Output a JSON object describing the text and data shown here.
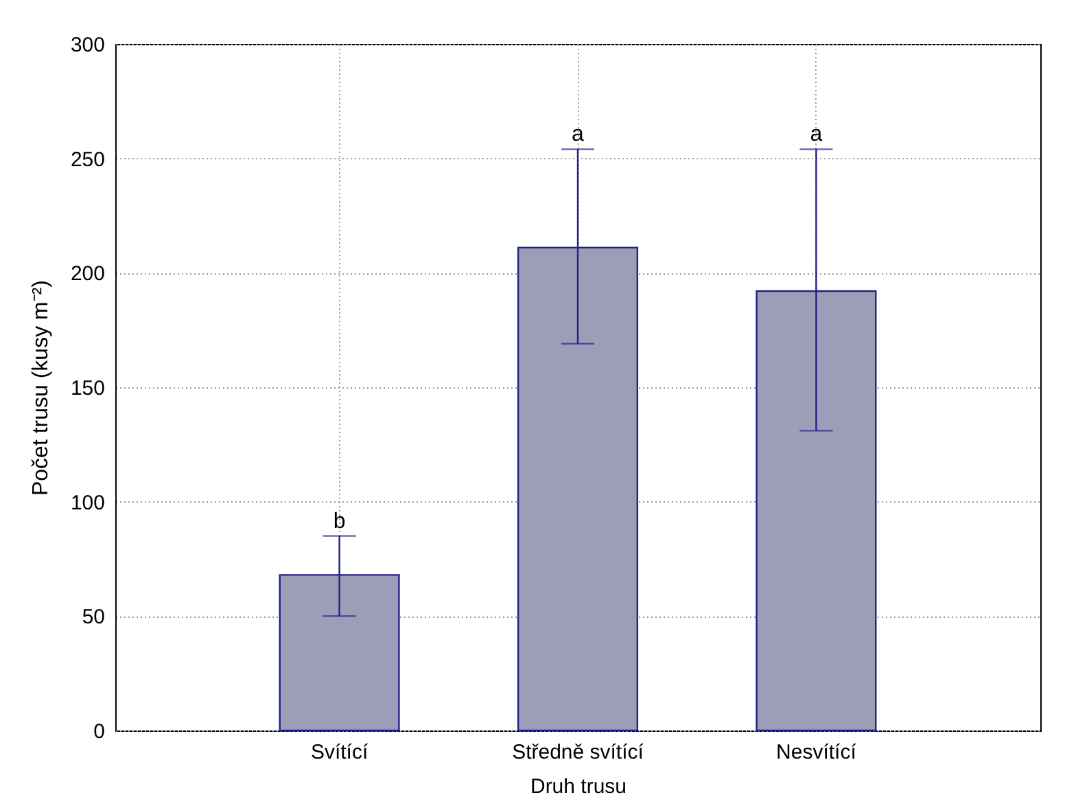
{
  "chart_data": {
    "type": "bar",
    "xlabel": "Druh trusu",
    "ylabel": "Počet trusu (kusy m⁻²)",
    "categories": [
      "Svítící",
      "Středně svítící",
      "Nesvítící"
    ],
    "values": [
      68,
      211,
      192
    ],
    "errors": [
      [
        50,
        85
      ],
      [
        169,
        254
      ],
      [
        131,
        254
      ]
    ],
    "color": "#9d9db8",
    "ylim": [
      0,
      300
    ],
    "yticks": [
      0,
      50,
      100,
      150,
      200,
      250,
      300
    ],
    "grid": true,
    "annotations": [
      {
        "text": "b",
        "x": "Svítící",
        "y": 85
      },
      {
        "text": "a",
        "x": "Středně svítící",
        "y": 254
      },
      {
        "text": "a",
        "x": "Nesvítící",
        "y": 254
      }
    ]
  }
}
